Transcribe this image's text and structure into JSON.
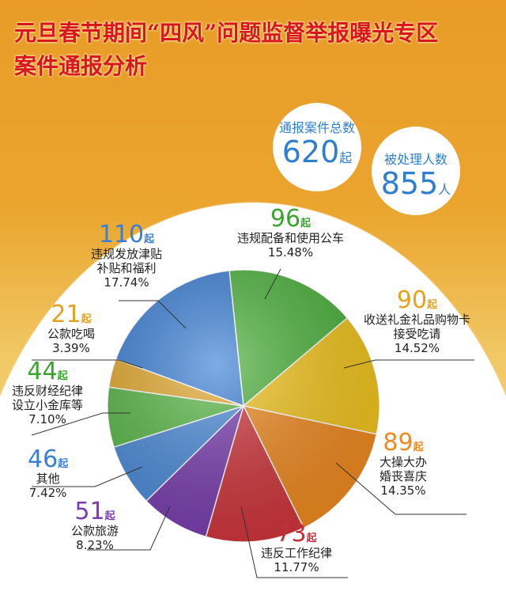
{
  "header": {
    "title_line1": "元旦春节期间“四风”问题监督举报曝光专区",
    "title_line2": "案件通报分析"
  },
  "summary": {
    "total_cases": {
      "caption": "通报案件总数",
      "value": "620",
      "unit": "起"
    },
    "people": {
      "caption": "被处理人数",
      "value": "855",
      "unit": "人"
    }
  },
  "chart_data": {
    "type": "pie",
    "unit": "起",
    "slices": [
      {
        "label": "违规配备和使用公车",
        "value": 96,
        "percent": "15.48%",
        "color": "#4cb33c"
      },
      {
        "label": "收送礼金礼品购物卡接受吃请",
        "value": 90,
        "percent": "14.52%",
        "color": "#f3c51b"
      },
      {
        "label": "大操大办婚丧喜庆",
        "value": 89,
        "percent": "14.35%",
        "color": "#f08a1f"
      },
      {
        "label": "违反工作纪律",
        "value": 73,
        "percent": "11.77%",
        "color": "#d0353b"
      },
      {
        "label": "公款旅游",
        "value": 51,
        "percent": "8.23%",
        "color": "#7a3eb0"
      },
      {
        "label": "其他",
        "value": 46,
        "percent": "7.42%",
        "color": "#4a8bd9"
      },
      {
        "label": "违反财经纪律设立小金库等",
        "value": 44,
        "percent": "7.10%",
        "color": "#58b846"
      },
      {
        "label": "公款吃喝",
        "value": 21,
        "percent": "3.39%",
        "color": "#e4a82a"
      },
      {
        "label": "违规发放津贴补贴和福利",
        "value": 110,
        "percent": "17.74%",
        "color": "#3a7fd6"
      }
    ],
    "labels_display": [
      [
        "违规配备和使用公车"
      ],
      [
        "收送礼金礼品购物卡",
        "接受吃请"
      ],
      [
        "大操大办",
        "婚丧喜庆"
      ],
      [
        "违反工作纪律"
      ],
      [
        "公款旅游"
      ],
      [
        "其他"
      ],
      [
        "违反财经纪律",
        "设立小金库等"
      ],
      [
        "公款吃喝"
      ],
      [
        "违规发放津贴",
        "补贴和福利"
      ]
    ],
    "number_colors": [
      "#3aa52e",
      "#e8a21a",
      "#f08a1f",
      "#c0303a",
      "#7a3eb0",
      "#3a7fd6",
      "#3aa52e",
      "#e4a020",
      "#3a7fd6"
    ]
  }
}
